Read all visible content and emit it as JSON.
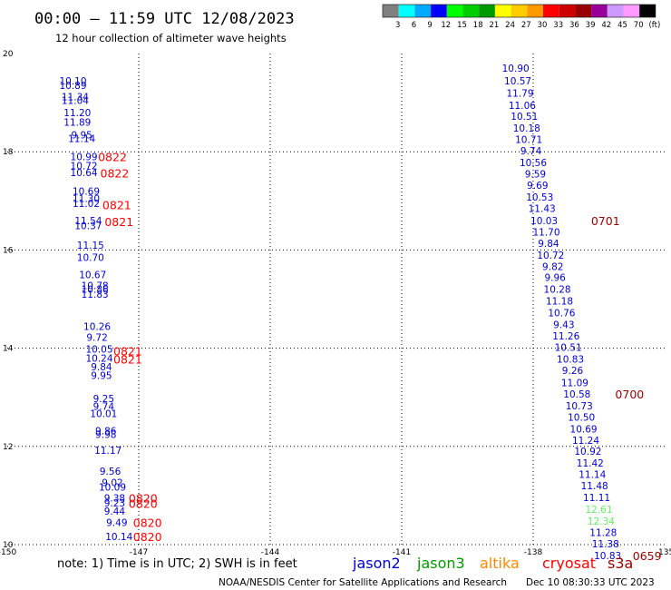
{
  "header": {
    "title": "00:00 – 11:59 UTC 12/08/2023",
    "subtitle": "12 hour collection of altimeter wave heights"
  },
  "colorbar": {
    "colors": [
      "#808080",
      "#00ffff",
      "#00aaff",
      "#0000ff",
      "#00ff00",
      "#00cc00",
      "#009900",
      "#ffff00",
      "#ffcc00",
      "#ff9900",
      "#ff0000",
      "#cc0000",
      "#990000",
      "#990099",
      "#cc99ff",
      "#ff99ff",
      "#000000"
    ],
    "labels": [
      "3",
      "6",
      "9",
      "12",
      "15",
      "18",
      "21",
      "24",
      "27",
      "30",
      "33",
      "36",
      "39",
      "42",
      "45",
      "70",
      "(ft)"
    ]
  },
  "footer": {
    "note": "note: 1) Time is in UTC; 2) SWH is in feet",
    "credit": "NOAA/NESDIS Center for Satellite Applications and Research",
    "timestamp": "Dec 10 08:30:33 UTC 2023",
    "satellites": [
      {
        "name": "jason2",
        "color": "#0000cc"
      },
      {
        "name": "jason3",
        "color": "#009900"
      },
      {
        "name": "altika",
        "color": "#ff8800"
      },
      {
        "name": "cryosat",
        "color": "#ff0000"
      },
      {
        "name": "s3a",
        "color": "#990000"
      }
    ]
  },
  "chart_data": {
    "type": "scatter",
    "title": "",
    "xlim": [
      -150,
      -135
    ],
    "ylim": [
      10,
      20
    ],
    "x_ticks": [
      "-150",
      "-147",
      "-144",
      "-141",
      "-138",
      "-135"
    ],
    "y_ticks": [
      "10",
      "12",
      "14",
      "16",
      "18",
      "20"
    ],
    "grid": true,
    "track_left": {
      "color": "#0000cc",
      "points": [
        {
          "x": -148.5,
          "y": 19.45,
          "label": "10.10"
        },
        {
          "x": -148.5,
          "y": 19.35,
          "label": "10.89"
        },
        {
          "x": -148.45,
          "y": 19.12,
          "label": "11.34"
        },
        {
          "x": -148.45,
          "y": 19.05,
          "label": "11.04"
        },
        {
          "x": -148.4,
          "y": 18.8,
          "label": "11.20"
        },
        {
          "x": -148.4,
          "y": 18.6,
          "label": "11.89"
        },
        {
          "x": -148.3,
          "y": 18.35,
          "label": "9.95"
        },
        {
          "x": -148.3,
          "y": 18.27,
          "label": "11.14"
        },
        {
          "x": -148.25,
          "y": 17.9,
          "label": "10.99"
        },
        {
          "x": -148.25,
          "y": 17.72,
          "label": "10.72"
        },
        {
          "x": -148.25,
          "y": 17.58,
          "label": "10.64"
        },
        {
          "x": -148.2,
          "y": 17.2,
          "label": "10.69"
        },
        {
          "x": -148.2,
          "y": 17.05,
          "label": "11.30"
        },
        {
          "x": -148.2,
          "y": 16.95,
          "label": "11.02"
        },
        {
          "x": -148.15,
          "y": 16.6,
          "label": "11.54"
        },
        {
          "x": -148.15,
          "y": 16.5,
          "label": "10.37"
        },
        {
          "x": -148.1,
          "y": 16.1,
          "label": "11.15"
        },
        {
          "x": -148.1,
          "y": 15.85,
          "label": "10.70"
        },
        {
          "x": -148.05,
          "y": 15.5,
          "label": "10.67"
        },
        {
          "x": -148.0,
          "y": 15.28,
          "label": "10.78"
        },
        {
          "x": -148.0,
          "y": 15.2,
          "label": "10.86"
        },
        {
          "x": -148.0,
          "y": 15.1,
          "label": "11.83"
        },
        {
          "x": -147.95,
          "y": 14.45,
          "label": "10.26"
        },
        {
          "x": -147.95,
          "y": 14.22,
          "label": "9.72"
        },
        {
          "x": -147.9,
          "y": 13.98,
          "label": "10.05"
        },
        {
          "x": -147.9,
          "y": 13.8,
          "label": "10.24"
        },
        {
          "x": -147.85,
          "y": 13.62,
          "label": "9.84"
        },
        {
          "x": -147.85,
          "y": 13.45,
          "label": "9.95"
        },
        {
          "x": -147.8,
          "y": 12.98,
          "label": "9.25"
        },
        {
          "x": -147.8,
          "y": 12.82,
          "label": "9.74"
        },
        {
          "x": -147.8,
          "y": 12.67,
          "label": "10.01"
        },
        {
          "x": -147.75,
          "y": 12.32,
          "label": "9.86"
        },
        {
          "x": -147.75,
          "y": 12.25,
          "label": "9.98"
        },
        {
          "x": -147.7,
          "y": 11.92,
          "label": "11.17"
        },
        {
          "x": -147.65,
          "y": 11.5,
          "label": "9.56"
        },
        {
          "x": -147.6,
          "y": 11.27,
          "label": "9.02"
        },
        {
          "x": -147.6,
          "y": 11.17,
          "label": "10.09"
        },
        {
          "x": -147.55,
          "y": 10.95,
          "label": "9.38"
        },
        {
          "x": -147.55,
          "y": 10.85,
          "label": "9.23"
        },
        {
          "x": -147.55,
          "y": 10.68,
          "label": "9.44"
        },
        {
          "x": -147.5,
          "y": 10.45,
          "label": "9.49"
        },
        {
          "x": -147.45,
          "y": 10.17,
          "label": "10.14"
        }
      ],
      "times": [
        {
          "x": -147.6,
          "y": 17.9,
          "label": "0822"
        },
        {
          "x": -147.55,
          "y": 17.57,
          "label": "0822"
        },
        {
          "x": -147.5,
          "y": 16.92,
          "label": "0821"
        },
        {
          "x": -147.45,
          "y": 16.58,
          "label": "0821"
        },
        {
          "x": -147.25,
          "y": 13.95,
          "label": "0821"
        },
        {
          "x": -147.25,
          "y": 13.78,
          "label": "0821"
        },
        {
          "x": -146.9,
          "y": 10.95,
          "label": "0820"
        },
        {
          "x": -146.9,
          "y": 10.84,
          "label": "0820"
        },
        {
          "x": -146.8,
          "y": 10.45,
          "label": "0820"
        },
        {
          "x": -146.8,
          "y": 10.17,
          "label": "0820"
        }
      ]
    },
    "track_right": {
      "color": "#0000cc",
      "points": [
        {
          "x": -138.4,
          "y": 19.7,
          "label": "10.90"
        },
        {
          "x": -138.35,
          "y": 19.45,
          "label": "10.57"
        },
        {
          "x": -138.3,
          "y": 19.2,
          "label": "11.79"
        },
        {
          "x": -138.25,
          "y": 18.95,
          "label": "11.06"
        },
        {
          "x": -138.2,
          "y": 18.72,
          "label": "10.51"
        },
        {
          "x": -138.15,
          "y": 18.48,
          "label": "10.18"
        },
        {
          "x": -138.1,
          "y": 18.25,
          "label": "10.71"
        },
        {
          "x": -138.05,
          "y": 18.02,
          "label": "9.74"
        },
        {
          "x": -138.0,
          "y": 17.78,
          "label": "10.56"
        },
        {
          "x": -137.95,
          "y": 17.55,
          "label": "9.59"
        },
        {
          "x": -137.9,
          "y": 17.32,
          "label": "9.69"
        },
        {
          "x": -137.85,
          "y": 17.08,
          "label": "10.53"
        },
        {
          "x": -137.8,
          "y": 16.85,
          "label": "11.43"
        },
        {
          "x": -137.75,
          "y": 16.6,
          "label": "10.03"
        },
        {
          "x": -137.7,
          "y": 16.37,
          "label": "11.70"
        },
        {
          "x": -137.65,
          "y": 16.14,
          "label": "9.84"
        },
        {
          "x": -137.6,
          "y": 15.9,
          "label": "10.72"
        },
        {
          "x": -137.55,
          "y": 15.67,
          "label": "9.82"
        },
        {
          "x": -137.5,
          "y": 15.44,
          "label": "9.96"
        },
        {
          "x": -137.45,
          "y": 15.2,
          "label": "10.28"
        },
        {
          "x": -137.4,
          "y": 14.96,
          "label": "11.18"
        },
        {
          "x": -137.35,
          "y": 14.72,
          "label": "10.76"
        },
        {
          "x": -137.3,
          "y": 14.48,
          "label": "9.43"
        },
        {
          "x": -137.25,
          "y": 14.25,
          "label": "11.26"
        },
        {
          "x": -137.2,
          "y": 14.02,
          "label": "10.51"
        },
        {
          "x": -137.15,
          "y": 13.78,
          "label": "10.83"
        },
        {
          "x": -137.1,
          "y": 13.55,
          "label": "9.26"
        },
        {
          "x": -137.05,
          "y": 13.3,
          "label": "11.09"
        },
        {
          "x": -137.0,
          "y": 13.07,
          "label": "10.58"
        },
        {
          "x": -136.95,
          "y": 12.83,
          "label": "10.73"
        },
        {
          "x": -136.9,
          "y": 12.6,
          "label": "10.50"
        },
        {
          "x": -136.85,
          "y": 12.36,
          "label": "10.69"
        },
        {
          "x": -136.8,
          "y": 12.13,
          "label": "11.24"
        },
        {
          "x": -136.75,
          "y": 11.9,
          "label": "10.92"
        },
        {
          "x": -136.7,
          "y": 11.66,
          "label": "11.42"
        },
        {
          "x": -136.65,
          "y": 11.43,
          "label": "11.14"
        },
        {
          "x": -136.6,
          "y": 11.2,
          "label": "11.48"
        },
        {
          "x": -136.55,
          "y": 10.96,
          "label": "11.11"
        },
        {
          "x": -136.5,
          "y": 10.72,
          "label": "12.61",
          "color": "#66ee66"
        },
        {
          "x": -136.45,
          "y": 10.48,
          "label": "12.34",
          "color": "#66ee66"
        },
        {
          "x": -136.4,
          "y": 10.25,
          "label": "11.28"
        },
        {
          "x": -136.35,
          "y": 10.02,
          "label": "11.38"
        },
        {
          "x": -136.3,
          "y": 9.78,
          "label": "10.83"
        }
      ],
      "times": [
        {
          "x": -136.35,
          "y": 16.6,
          "label": "0701"
        },
        {
          "x": -135.8,
          "y": 13.07,
          "label": "0700"
        },
        {
          "x": -135.4,
          "y": 9.78,
          "label": "0659"
        }
      ]
    }
  }
}
